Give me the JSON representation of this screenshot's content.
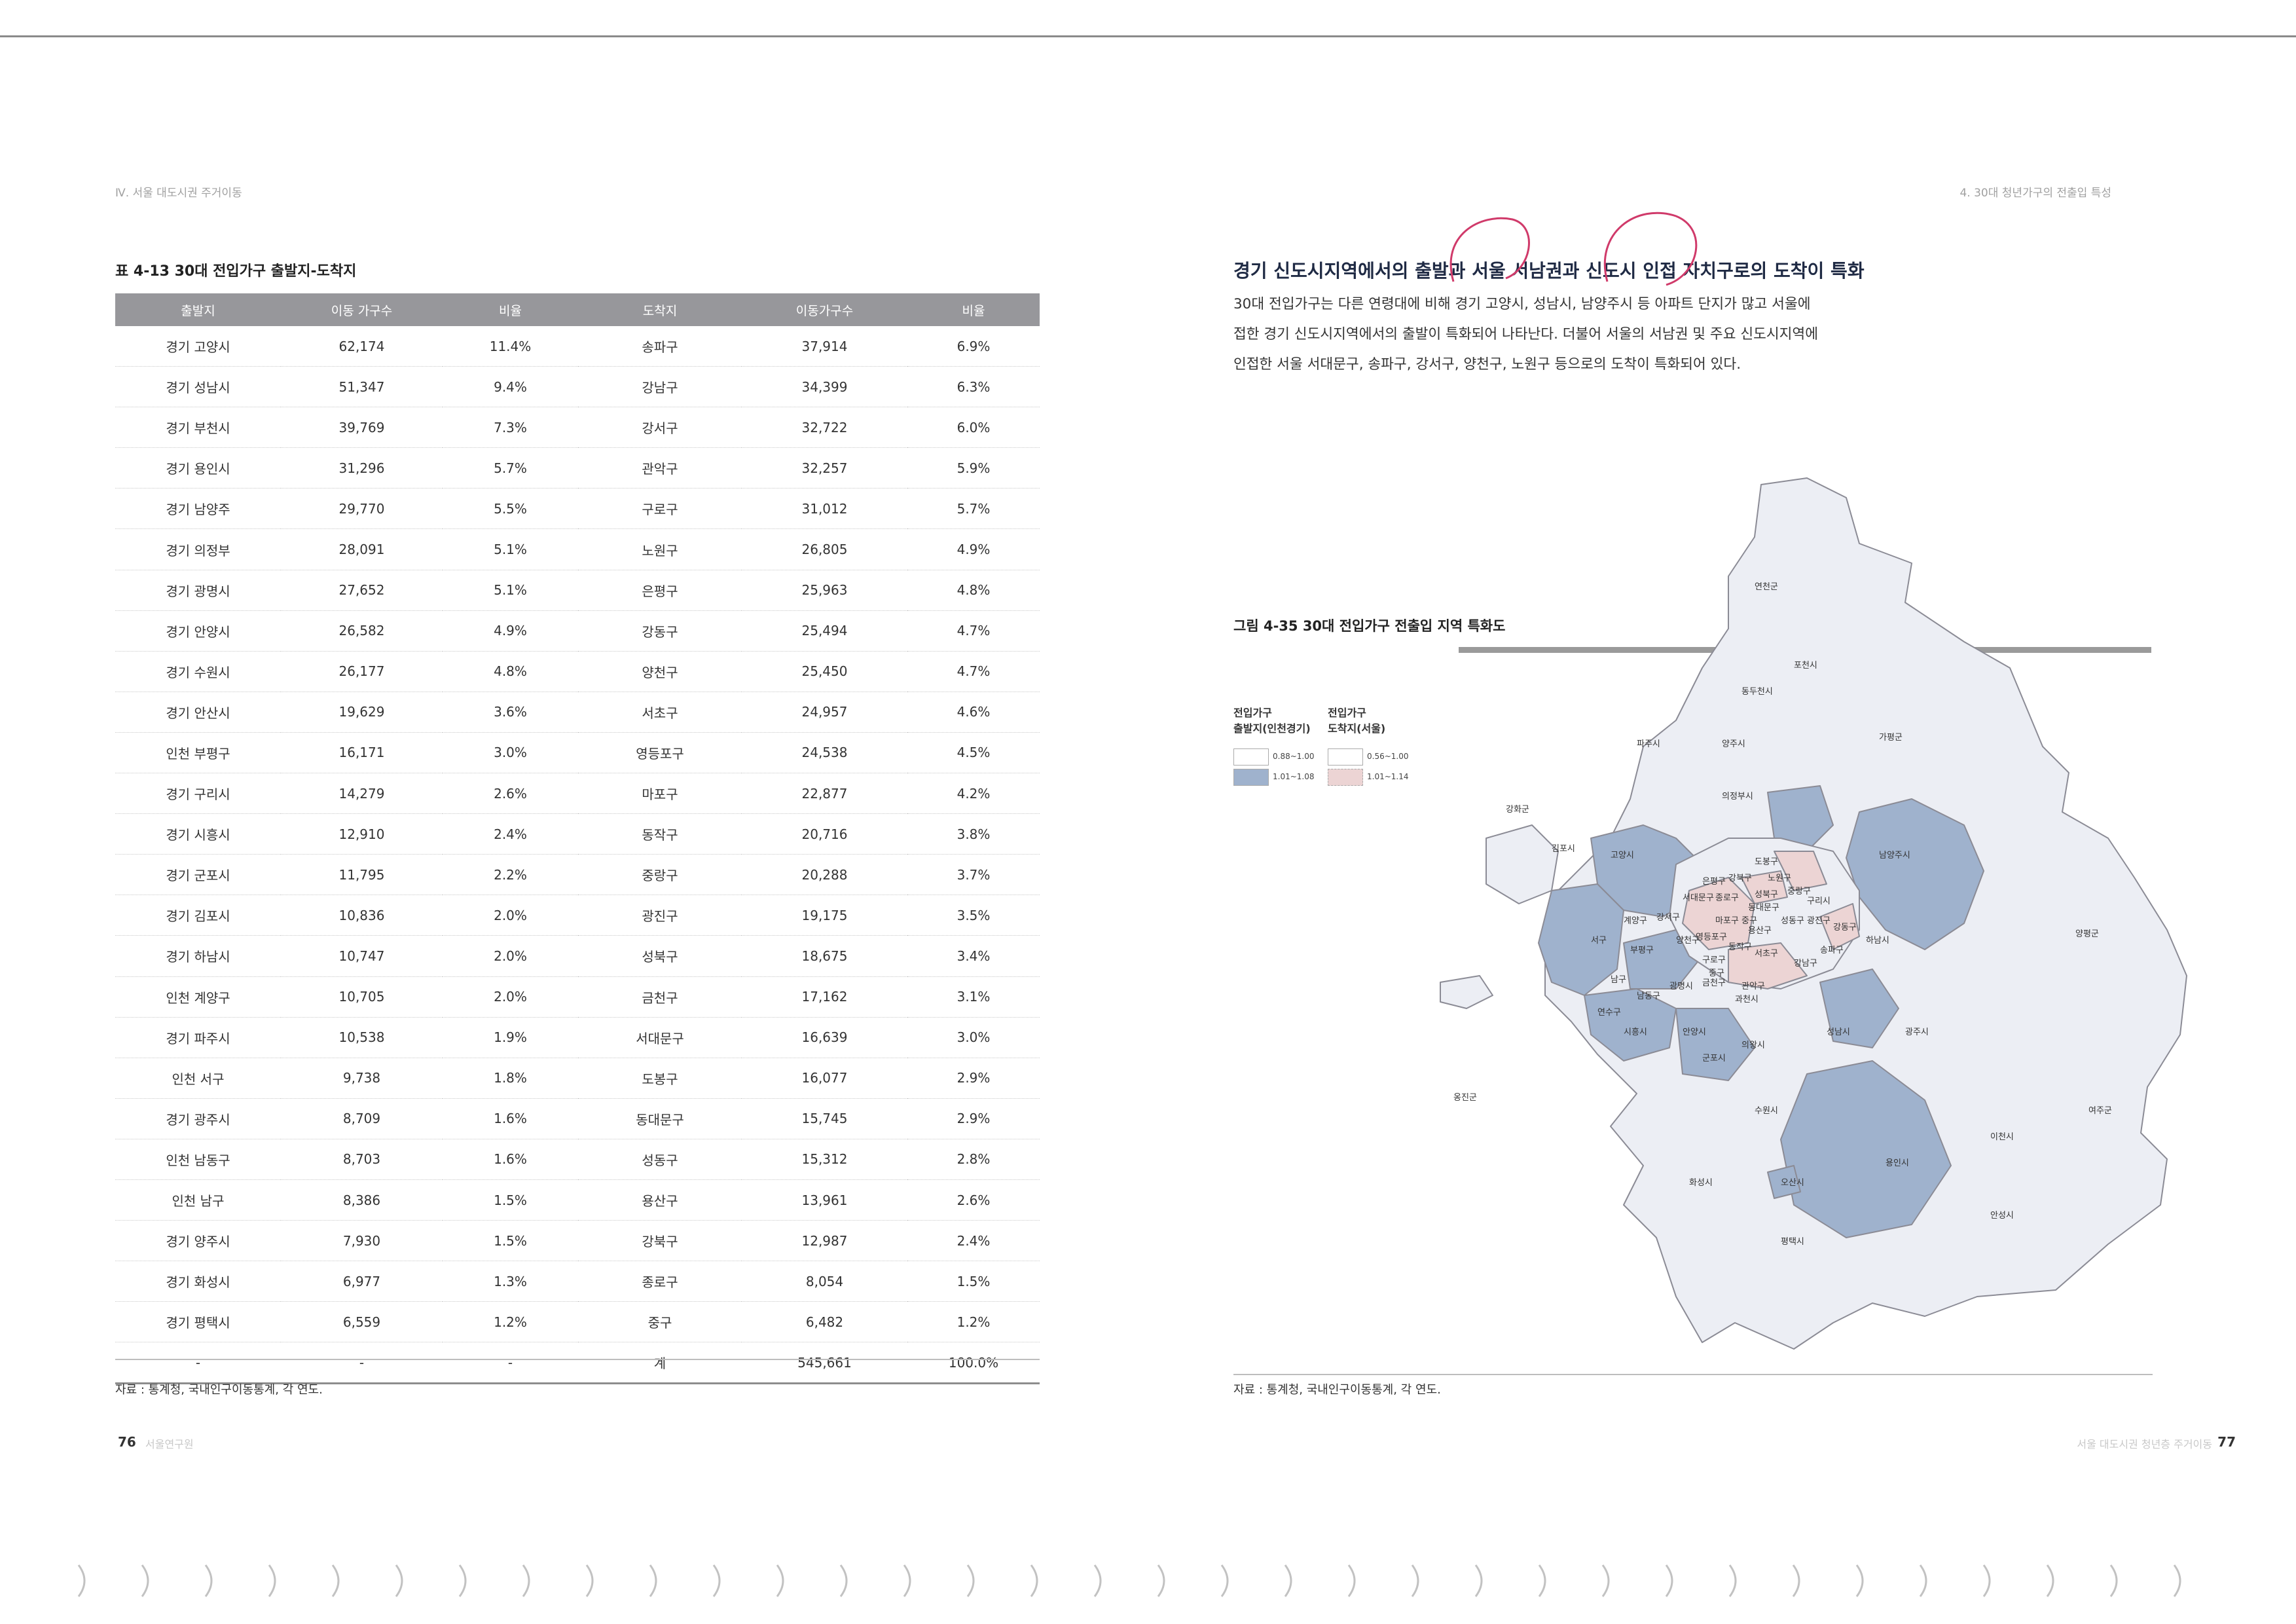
{
  "left_page": {
    "running_head": "Ⅳ. 서울 대도시권 주거이동",
    "table_title": "표 4-13 30대 전입가구 출발지-도착지",
    "columns": [
      "출발지",
      "이동 가구수",
      "비율",
      "도착지",
      "이동가구수",
      "비율"
    ],
    "rows": [
      [
        "경기 고양시",
        "62,174",
        "11.4%",
        "송파구",
        "37,914",
        "6.9%"
      ],
      [
        "경기 성남시",
        "51,347",
        "9.4%",
        "강남구",
        "34,399",
        "6.3%"
      ],
      [
        "경기 부천시",
        "39,769",
        "7.3%",
        "강서구",
        "32,722",
        "6.0%"
      ],
      [
        "경기 용인시",
        "31,296",
        "5.7%",
        "관악구",
        "32,257",
        "5.9%"
      ],
      [
        "경기 남양주",
        "29,770",
        "5.5%",
        "구로구",
        "31,012",
        "5.7%"
      ],
      [
        "경기 의정부",
        "28,091",
        "5.1%",
        "노원구",
        "26,805",
        "4.9%"
      ],
      [
        "경기 광명시",
        "27,652",
        "5.1%",
        "은평구",
        "25,963",
        "4.8%"
      ],
      [
        "경기 안양시",
        "26,582",
        "4.9%",
        "강동구",
        "25,494",
        "4.7%"
      ],
      [
        "경기 수원시",
        "26,177",
        "4.8%",
        "양천구",
        "25,450",
        "4.7%"
      ],
      [
        "경기 안산시",
        "19,629",
        "3.6%",
        "서초구",
        "24,957",
        "4.6%"
      ],
      [
        "인천 부평구",
        "16,171",
        "3.0%",
        "영등포구",
        "24,538",
        "4.5%"
      ],
      [
        "경기 구리시",
        "14,279",
        "2.6%",
        "마포구",
        "22,877",
        "4.2%"
      ],
      [
        "경기 시흥시",
        "12,910",
        "2.4%",
        "동작구",
        "20,716",
        "3.8%"
      ],
      [
        "경기 군포시",
        "11,795",
        "2.2%",
        "중랑구",
        "20,288",
        "3.7%"
      ],
      [
        "경기 김포시",
        "10,836",
        "2.0%",
        "광진구",
        "19,175",
        "3.5%"
      ],
      [
        "경기 하남시",
        "10,747",
        "2.0%",
        "성북구",
        "18,675",
        "3.4%"
      ],
      [
        "인천 계양구",
        "10,705",
        "2.0%",
        "금천구",
        "17,162",
        "3.1%"
      ],
      [
        "경기 파주시",
        "10,538",
        "1.9%",
        "서대문구",
        "16,639",
        "3.0%"
      ],
      [
        "인천 서구",
        "9,738",
        "1.8%",
        "도봉구",
        "16,077",
        "2.9%"
      ],
      [
        "경기 광주시",
        "8,709",
        "1.6%",
        "동대문구",
        "15,745",
        "2.9%"
      ],
      [
        "인천 남동구",
        "8,703",
        "1.6%",
        "성동구",
        "15,312",
        "2.8%"
      ],
      [
        "인천 남구",
        "8,386",
        "1.5%",
        "용산구",
        "13,961",
        "2.6%"
      ],
      [
        "경기 양주시",
        "7,930",
        "1.5%",
        "강북구",
        "12,987",
        "2.4%"
      ],
      [
        "경기 화성시",
        "6,977",
        "1.3%",
        "종로구",
        "8,054",
        "1.5%"
      ],
      [
        "경기 평택시",
        "6,559",
        "1.2%",
        "중구",
        "6,482",
        "1.2%"
      ],
      [
        "-",
        "-",
        "-",
        "계",
        "545,661",
        "100.0%"
      ]
    ],
    "source": "자료 : 통계청, 국내인구이동통계, 각 연도.",
    "page_number": "76",
    "footer_faint": "서울연구원"
  },
  "right_page": {
    "running_head": "4. 30대 청년가구의 전출입 특성",
    "heading": "경기 신도시지역에서의 출발과 서울 서남권과 신도시 인접 자치구로의 도착이 특화",
    "body_lines": [
      "30대 전입가구는 다른 연령대에 비해 경기 고양시, 성남시, 남양주시 등 아파트 단지가 많고 서울에",
      "접한 경기 신도시지역에서의 출발이 특화되어 나타난다. 더불어 서울의 서남권 및 주요 신도시지역에",
      "인접한 서울 서대문구, 송파구, 강서구, 양천구, 노원구 등으로의 도착이 특화되어 있다."
    ],
    "figure_title": "그림 4-35 30대 전입가구 전출입 지역 특화도",
    "legend": {
      "origin_title_1": "전입가구",
      "origin_title_2": "출발지(인천경기)",
      "dest_title_1": "전입가구",
      "dest_title_2": "도착지(서울)",
      "origin_items": [
        {
          "label": "0.88~1.00",
          "color": "#ffffff"
        },
        {
          "label": "1.01~1.08",
          "color": "#9fb2cd"
        }
      ],
      "dest_items": [
        {
          "label": "0.56~1.00",
          "color": "#ffffff"
        },
        {
          "label": "1.01~1.14",
          "color": "#ecd4d4"
        }
      ]
    },
    "map_labels": [
      "연천군",
      "포천시",
      "동두천시",
      "파주시",
      "양주시",
      "가평군",
      "의정부시",
      "강화군",
      "김포시",
      "고양시",
      "남양주시",
      "도봉구",
      "노원구",
      "강북구",
      "은평구",
      "성북구",
      "중랑구",
      "서대문구",
      "종로구",
      "동대문구",
      "구리시",
      "마포구",
      "중구",
      "성동구",
      "광진구",
      "강동구",
      "계양구",
      "강서구",
      "용산구",
      "하남시",
      "양평군",
      "서구",
      "부평구",
      "양천구",
      "영등포구",
      "동작구",
      "송파구",
      "구로구",
      "서초구",
      "강남구",
      "중구",
      "금천구",
      "관악구",
      "남구",
      "광명시",
      "과천시",
      "남동구",
      "연수구",
      "시흥시",
      "안양시",
      "성남시",
      "광주시",
      "의왕시",
      "군포시",
      "옹진군",
      "수원시",
      "여주군",
      "이천시",
      "용인시",
      "화성시",
      "오산시",
      "안성시",
      "평택시"
    ],
    "source": "자료 : 통계청, 국내인구이동통계, 각 연도.",
    "footer_faint": "서울 대도시권 청년층 주거이동",
    "page_number": "77"
  },
  "colors": {
    "table_header": "#97979b",
    "origin_specialized": "#9fb2cd",
    "dest_specialized": "#ecd4d4",
    "region_base": "#eceef4",
    "annotation_pen": "#d03a6a"
  }
}
